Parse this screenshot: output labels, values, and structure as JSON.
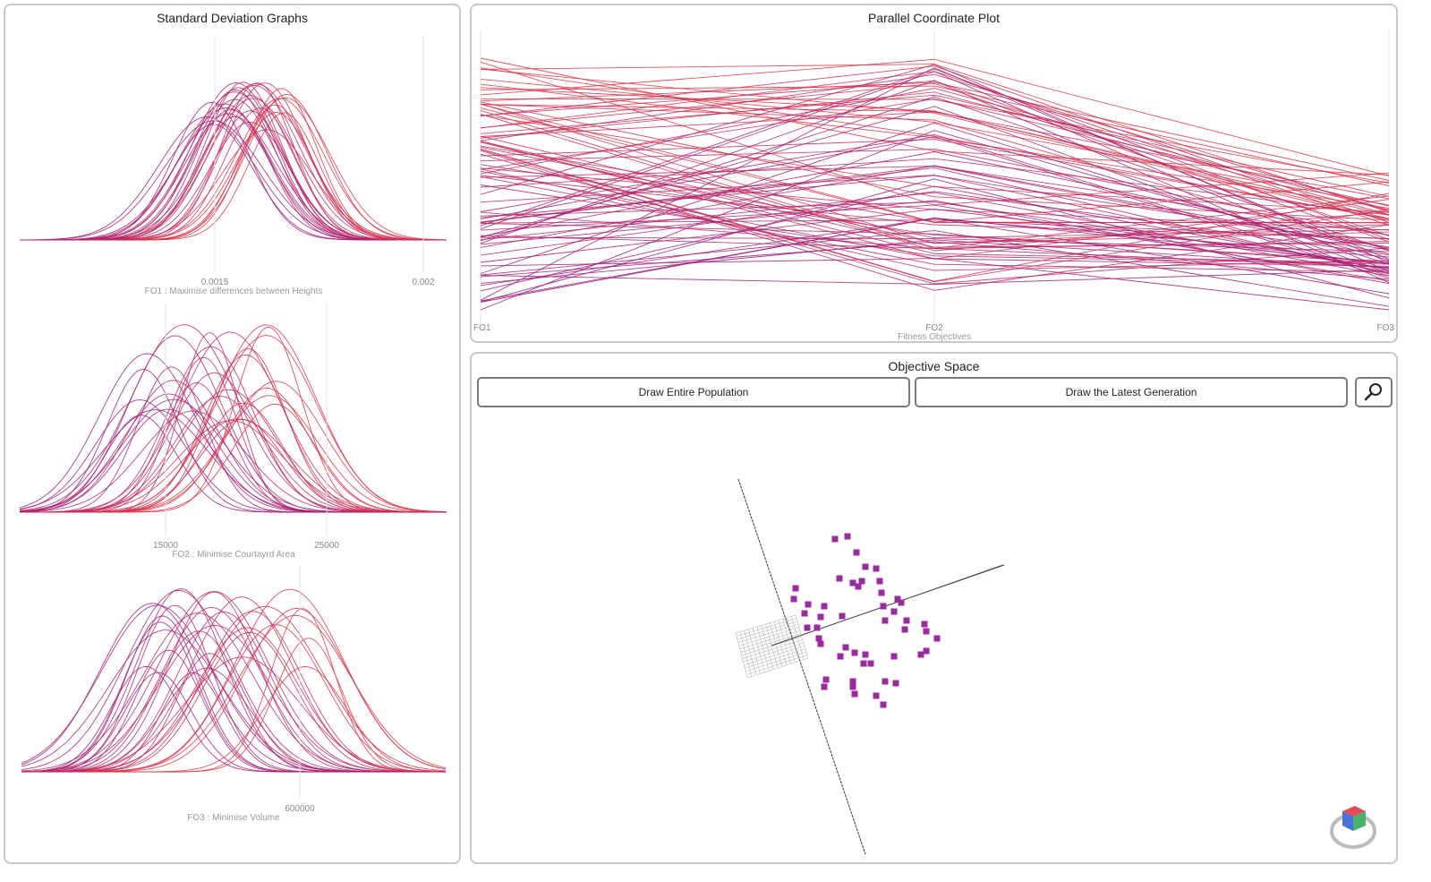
{
  "std_panel": {
    "title": "Standard Deviation Graphs",
    "graphs": [
      {
        "label": "FO1 : Maximise differences between Heights",
        "ticks": [
          "0.0015",
          "0.002"
        ]
      },
      {
        "label": "FO2 : Minimise Courtayrd Area",
        "ticks": [
          "15000",
          "25000"
        ]
      },
      {
        "label": "FO3 : Minimise Volume",
        "ticks": [
          "600000"
        ]
      }
    ]
  },
  "pcp_panel": {
    "title": "Parallel Coordinate Plot",
    "axes": [
      "FO1",
      "FO2",
      "FO3"
    ],
    "xlabel": "Fitness Objectives"
  },
  "obj_panel": {
    "title": "Objective Space",
    "draw_all_label": "Draw Entire Population",
    "draw_latest_label": "Draw the Latest Generation",
    "zoom_icon": "magnifier-icon",
    "cube_icon": "view-cube-icon"
  },
  "colors": {
    "red": "#e8343e",
    "purple": "#9b1a80",
    "point": "#9a2aa0",
    "border": "#c8c8c8"
  },
  "chart_data": [
    {
      "type": "line",
      "name": "Standard deviation curves (FO1)",
      "xticks": [
        0.0015,
        0.002
      ],
      "count": 30
    },
    {
      "type": "line",
      "name": "Standard deviation curves (FO2)",
      "xticks": [
        15000,
        25000
      ],
      "count": 30
    },
    {
      "type": "line",
      "name": "Standard deviation curves (FO3)",
      "xticks": [
        600000
      ],
      "count": 30
    },
    {
      "type": "line",
      "name": "Parallel coordinates",
      "axes": [
        "FO1",
        "FO2",
        "FO3"
      ],
      "count": 90
    },
    {
      "type": "scatter",
      "name": "Objective space population",
      "count": 50
    }
  ]
}
